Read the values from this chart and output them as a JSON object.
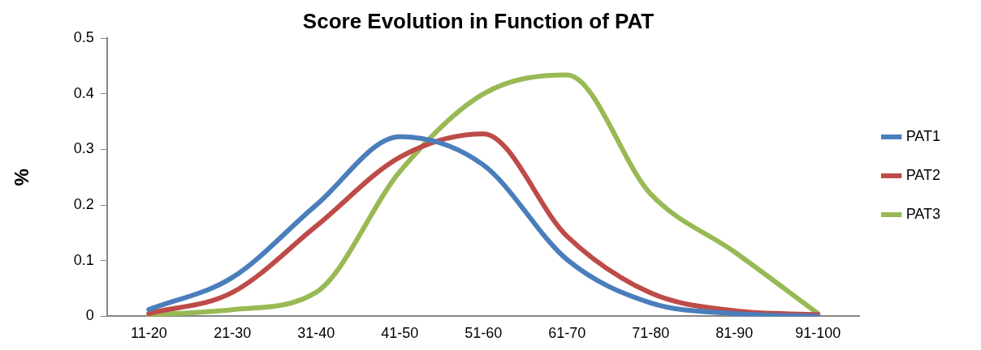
{
  "chart_data": {
    "type": "line",
    "title": "Score Evolution in Function of PAT",
    "ylabel": "%",
    "categories": [
      "11-20",
      "21-30",
      "31-40",
      "41-50",
      "51-60",
      "61-70",
      "71-80",
      "81-90",
      "91-100"
    ],
    "series": [
      {
        "name": "PAT1",
        "color": "#4a7ebb",
        "values": [
          0.012,
          0.07,
          0.2,
          0.323,
          0.272,
          0.102,
          0.024,
          0.005,
          0
        ]
      },
      {
        "name": "PAT2",
        "color": "#be4b48",
        "values": [
          0.005,
          0.043,
          0.162,
          0.286,
          0.328,
          0.144,
          0.042,
          0.01,
          0.003
        ]
      },
      {
        "name": "PAT3",
        "color": "#98b954",
        "values": [
          0.002,
          0.012,
          0.043,
          0.26,
          0.4,
          0.434,
          0.22,
          0.116,
          0.005
        ]
      }
    ],
    "ylim": [
      0,
      0.5
    ],
    "yticks": [
      0,
      0.1,
      0.2,
      0.3,
      0.4,
      0.5
    ],
    "grid": false,
    "legend": "right",
    "marker": "none",
    "line_style": "solid"
  }
}
